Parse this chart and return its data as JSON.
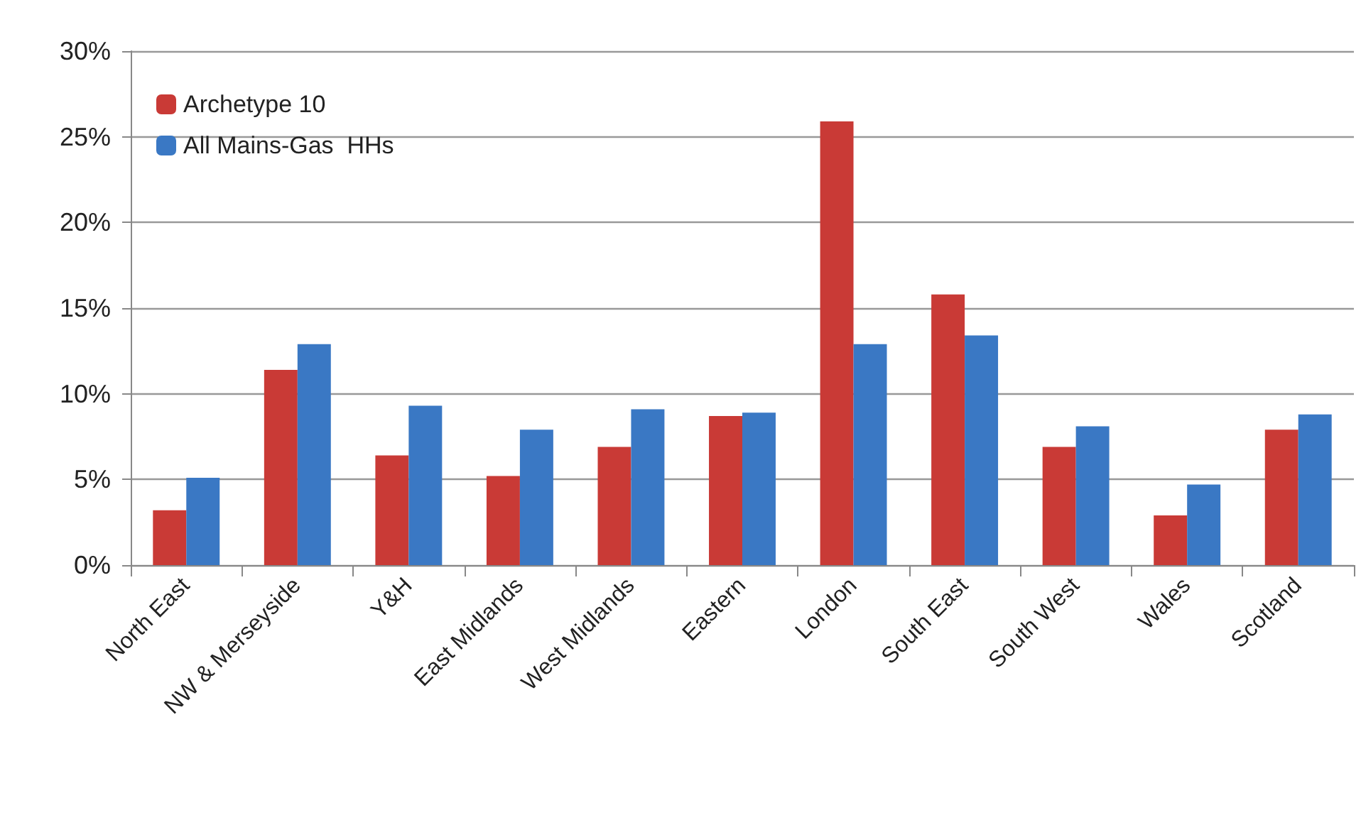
{
  "chart_data": {
    "type": "bar",
    "categories": [
      "North East",
      "NW & Merseyside",
      "Y&H",
      "East Midlands",
      "West Midlands",
      "Eastern",
      "London",
      "South East",
      "South West",
      "Wales",
      "Scotland"
    ],
    "series": [
      {
        "name": "Archetype 10",
        "color": "#c93a36",
        "values": [
          3.2,
          11.4,
          6.4,
          5.2,
          6.9,
          8.7,
          25.9,
          15.8,
          6.9,
          2.9,
          7.9
        ]
      },
      {
        "name": "All Mains-Gas  HHs",
        "color": "#3a78c4",
        "values": [
          5.1,
          12.9,
          9.3,
          7.9,
          9.1,
          8.9,
          12.9,
          13.4,
          8.1,
          4.7,
          8.8
        ]
      }
    ],
    "ylim": [
      0,
      30
    ],
    "yticks": [
      {
        "value": 0,
        "label": "0%"
      },
      {
        "value": 5,
        "label": "5%"
      },
      {
        "value": 10,
        "label": "10%"
      },
      {
        "value": 15,
        "label": "15%"
      },
      {
        "value": 20,
        "label": "20%"
      },
      {
        "value": 25,
        "label": "25%"
      },
      {
        "value": 30,
        "label": "30%"
      }
    ],
    "grid": "y",
    "legend": "top left"
  }
}
